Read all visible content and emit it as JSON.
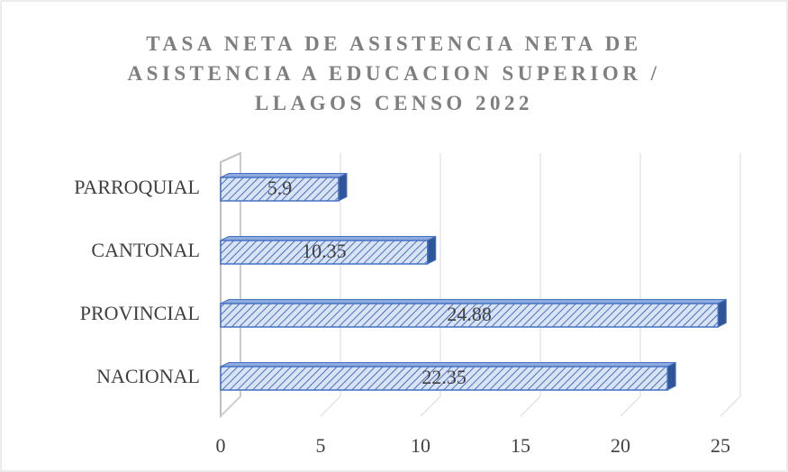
{
  "chart_data": {
    "type": "bar",
    "orientation": "horizontal",
    "title": "TASA NETA DE ASISTENCIA NETA DE ASISTENCIA A EDUCACION SUPERIOR / LLAGOS CENSO 2022",
    "categories": [
      "NACIONAL",
      "PROVINCIAL",
      "CANTONAL",
      "PARROQUIAL"
    ],
    "values": [
      22.35,
      24.88,
      10.35,
      5.9
    ],
    "color": "#4472c4",
    "xlim": [
      0,
      25
    ],
    "xticks": [
      0,
      5,
      10,
      15,
      20,
      25
    ],
    "grid": true
  }
}
